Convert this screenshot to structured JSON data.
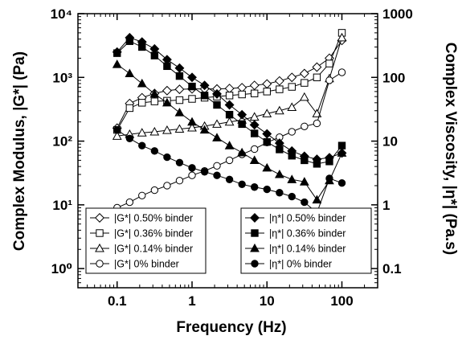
{
  "chart_data": {
    "type": "line",
    "xlabel": "Frequency (Hz)",
    "ylabel_left": "Complex Modulus, |G*| (Pa)",
    "ylabel_right": "Complex Viscosity, |η*| (Pa.s)",
    "x_scale": "log",
    "y_scale_left": "log",
    "y_scale_right": "log",
    "xlim": [
      0.03,
      300
    ],
    "ylim_left": [
      0.5,
      10000
    ],
    "ylim_right": [
      0.05,
      1000
    ],
    "x_ticks": [
      {
        "value": 0.1,
        "label": "0.1"
      },
      {
        "value": 1,
        "label": "1"
      },
      {
        "value": 10,
        "label": "10"
      },
      {
        "value": 100,
        "label": "100"
      }
    ],
    "y_ticks_left": [
      {
        "value": 1,
        "label": "10⁰"
      },
      {
        "value": 10,
        "label": "10¹"
      },
      {
        "value": 100,
        "label": "10²"
      },
      {
        "value": 1000,
        "label": "10³"
      },
      {
        "value": 10000,
        "label": "10⁴"
      }
    ],
    "y_ticks_right": [
      {
        "value": 0.1,
        "label": "0.1"
      },
      {
        "value": 1,
        "label": "1"
      },
      {
        "value": 10,
        "label": "10"
      },
      {
        "value": 100,
        "label": "100"
      },
      {
        "value": 1000,
        "label": "1000"
      }
    ],
    "grid": false,
    "legend_left_placement": "bottom-left",
    "legend_right_placement": "bottom-right",
    "series": [
      {
        "name": "|G*| 0.50% binder",
        "axis": "left",
        "marker": "diamond",
        "filled": false,
        "x": [
          0.1,
          0.147,
          0.215,
          0.316,
          0.464,
          0.681,
          1.0,
          1.47,
          2.15,
          3.16,
          4.64,
          6.81,
          10,
          14.7,
          21.5,
          31.6,
          46.4,
          68.1,
          100
        ],
        "y": [
          160,
          390,
          480,
          560,
          620,
          650,
          660,
          660,
          660,
          670,
          690,
          750,
          790,
          880,
          1000,
          1150,
          1450,
          2000,
          3800
        ]
      },
      {
        "name": "|G*| 0.36% binder",
        "axis": "left",
        "marker": "square",
        "filled": false,
        "x": [
          0.1,
          0.147,
          0.215,
          0.316,
          0.464,
          0.681,
          1.0,
          1.47,
          2.15,
          3.16,
          4.64,
          6.81,
          10,
          14.7,
          21.5,
          31.6,
          46.4,
          68.1,
          100
        ],
        "y": [
          150,
          330,
          400,
          420,
          430,
          440,
          460,
          480,
          500,
          520,
          540,
          560,
          600,
          650,
          710,
          820,
          1000,
          1650,
          5000
        ]
      },
      {
        "name": "|G*| 0.14% binder",
        "axis": "left",
        "marker": "triangle",
        "filled": false,
        "x": [
          0.1,
          0.147,
          0.215,
          0.316,
          0.464,
          0.681,
          1.0,
          1.47,
          2.15,
          3.16,
          4.64,
          6.81,
          10,
          14.7,
          21.5,
          31.6,
          46.4,
          68.1,
          100
        ],
        "y": [
          120,
          128,
          135,
          140,
          148,
          155,
          162,
          172,
          185,
          200,
          215,
          240,
          270,
          300,
          340,
          490,
          270,
          960,
          4200
        ]
      },
      {
        "name": "|G*| 0% binder",
        "axis": "left",
        "marker": "circle",
        "filled": false,
        "x": [
          0.1,
          0.147,
          0.215,
          0.316,
          0.464,
          0.681,
          1.0,
          1.47,
          2.15,
          3.16,
          4.64,
          6.81,
          10,
          14.7,
          21.5,
          31.6,
          46.4,
          68.1,
          100
        ],
        "y": [
          9,
          11,
          14,
          17,
          20,
          24,
          29,
          34,
          41,
          50,
          62,
          75,
          95,
          115,
          140,
          170,
          190,
          900,
          1200
        ]
      },
      {
        "name": "|η*| 0.50% binder",
        "axis": "right",
        "marker": "diamond",
        "filled": true,
        "x": [
          0.1,
          0.147,
          0.215,
          0.316,
          0.464,
          0.681,
          1.0,
          1.47,
          2.15,
          3.16,
          4.64,
          6.81,
          10,
          14.7,
          21.5,
          31.6,
          46.4,
          68.1,
          100
        ],
        "y": [
          250,
          420,
          360,
          280,
          190,
          140,
          100,
          75,
          55,
          37,
          26,
          18,
          13,
          9.3,
          7,
          5.8,
          5.2,
          5.5,
          6.5
        ]
      },
      {
        "name": "|η*| 0.36% binder",
        "axis": "right",
        "marker": "square",
        "filled": true,
        "x": [
          0.1,
          0.147,
          0.215,
          0.316,
          0.464,
          0.681,
          1.0,
          1.47,
          2.15,
          3.16,
          4.64,
          6.81,
          10,
          14.7,
          21.5,
          31.6,
          46.4,
          68.1,
          100
        ],
        "y": [
          240,
          370,
          300,
          220,
          150,
          105,
          72,
          52,
          37,
          26,
          18.5,
          13.2,
          9.7,
          7.4,
          5.9,
          5,
          4.4,
          4.8,
          8.5
        ]
      },
      {
        "name": "|η*| 0.14% binder",
        "axis": "right",
        "marker": "triangle",
        "filled": true,
        "x": [
          0.1,
          0.147,
          0.215,
          0.316,
          0.464,
          0.681,
          1.0,
          1.47,
          2.15,
          3.16,
          4.64,
          6.81,
          10,
          14.7,
          21.5,
          31.6,
          46.4,
          68.1,
          100
        ],
        "y": [
          160,
          115,
          80,
          55,
          40,
          28,
          20,
          15,
          11.3,
          8.5,
          6.6,
          5,
          3.8,
          3,
          2.5,
          2.3,
          1.2,
          2.4,
          6.5
        ]
      },
      {
        "name": "|η*| 0% binder",
        "axis": "right",
        "marker": "circle",
        "filled": true,
        "x": [
          0.1,
          0.147,
          0.215,
          0.316,
          0.464,
          0.681,
          1.0,
          1.47,
          2.15,
          3.16,
          4.64,
          6.81,
          10,
          14.7,
          21.5,
          31.6,
          46.4,
          68.1,
          100
        ],
        "y": [
          15,
          11,
          8.5,
          7,
          5.6,
          4.6,
          3.8,
          3.3,
          2.9,
          2.5,
          2.1,
          1.9,
          1.75,
          1.55,
          1.35,
          1.1,
          0.75,
          2.6,
          2.2
        ]
      }
    ]
  }
}
